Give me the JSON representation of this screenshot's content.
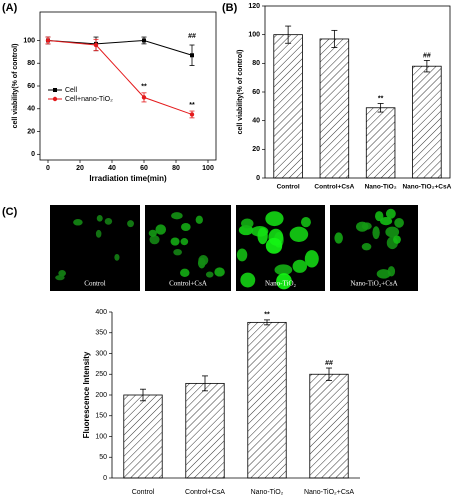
{
  "panel_labels": [
    "(A)",
    "(B)",
    "(C)"
  ],
  "micrographs": {
    "labels": [
      "Control",
      "Control+CsA",
      "Nano-TiO₂",
      "Nano-TiO₂+CsA"
    ]
  },
  "chart_data": [
    {
      "type": "line",
      "x_label": "Irradiation time(min)",
      "y_label": "cell viability(% of control)",
      "x": [
        0,
        30,
        60,
        90
      ],
      "series": [
        {
          "name": "Cell",
          "color": "#000000",
          "marker": "square",
          "values": [
            100,
            97,
            100,
            87
          ],
          "errors": [
            3,
            6,
            3,
            9
          ]
        },
        {
          "name": "Cell+nano-TiO₂",
          "color": "#e41a1c",
          "marker": "circle",
          "values": [
            100,
            96,
            50,
            35
          ],
          "errors": [
            3,
            5,
            4,
            3
          ]
        }
      ],
      "annotations": [
        {
          "text": "##",
          "series": 0,
          "index": 3
        },
        {
          "text": "**",
          "series": 1,
          "index": 2
        },
        {
          "text": "**",
          "series": 1,
          "index": 3
        }
      ],
      "xlim": [
        -5,
        105
      ],
      "xticks": [
        0,
        20,
        40,
        60,
        80,
        100
      ],
      "ylim": [
        -5,
        125
      ],
      "yticks": [
        0,
        20,
        40,
        60,
        80,
        100
      ],
      "legend": "upper left"
    },
    {
      "type": "bar",
      "y_label": "cell viability(% of control)",
      "categories": [
        "Control",
        "Control+CsA",
        "Nano-TiO₂",
        "Nano-TiO₂+CsA"
      ],
      "values": [
        100,
        97,
        49,
        78
      ],
      "errors": [
        6,
        6,
        3,
        4
      ],
      "color": "#000000",
      "annotations": [
        {
          "text": "**",
          "index": 2
        },
        {
          "text": "##",
          "index": 3
        }
      ],
      "ylim": [
        0,
        120
      ],
      "yticks": [
        0,
        20,
        40,
        60,
        80,
        100,
        120
      ]
    },
    {
      "type": "bar",
      "y_label": "Fluorescence Intensity",
      "categories": [
        "Control",
        "Control+CsA",
        "Nano-TiO₂",
        "Nano-TiO₂+CsA"
      ],
      "values": [
        200,
        228,
        375,
        250
      ],
      "errors": [
        14,
        18,
        6,
        15
      ],
      "color": "#000000",
      "annotations": [
        {
          "text": "**",
          "index": 2
        },
        {
          "text": "##",
          "index": 3
        }
      ],
      "ylim": [
        0,
        400
      ],
      "yticks": [
        0,
        50,
        100,
        150,
        200,
        250,
        300,
        350,
        400
      ]
    }
  ]
}
